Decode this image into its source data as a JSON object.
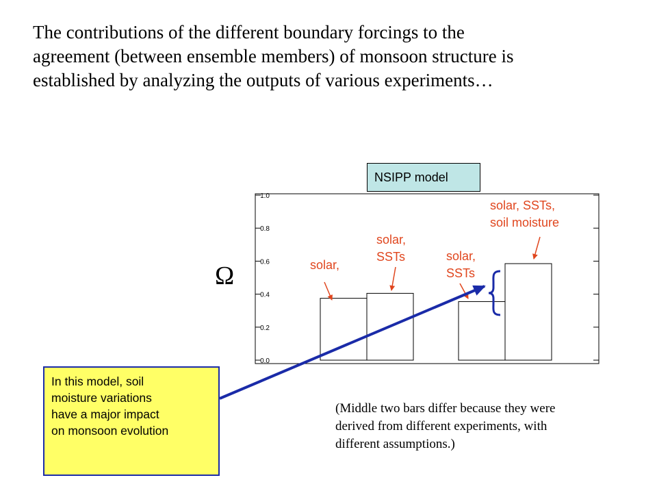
{
  "slide": {
    "title_lines": [
      "The contributions of the different boundary forcings to the",
      "agreement (between ensemble members) of monsoon structure is",
      "established by analyzing the outputs of various experiments…"
    ],
    "model_label": "NSIPP model",
    "omega": "Ω",
    "note_lines": [
      "In this model, soil",
      "moisture variations",
      "have a major impact",
      "on monsoon evolution"
    ],
    "caption_lines": [
      "(Middle two bars differ because they were",
      "derived from different experiments, with",
      "different assumptions.)"
    ]
  },
  "chart_data": {
    "type": "bar",
    "title": "",
    "xlabel": "",
    "ylabel": "Ω",
    "ylim": [
      0,
      1
    ],
    "yticks": [
      "0.0",
      "0.2",
      "0.4",
      "0.6",
      "0.8",
      "1.0"
    ],
    "values": [
      0.375,
      0.405,
      0.355,
      0.585
    ],
    "bar_labels": [
      [
        "solar,"
      ],
      [
        "solar,",
        "SSTs"
      ],
      [
        "solar,",
        "SSTs"
      ],
      [
        "solar, SSTs,",
        "soil moisture"
      ]
    ],
    "colors": {
      "label": "#e0461e",
      "arrow": "#1a2ba8",
      "bar_fill": "#ffffff",
      "bar_stroke": "#000000"
    }
  }
}
